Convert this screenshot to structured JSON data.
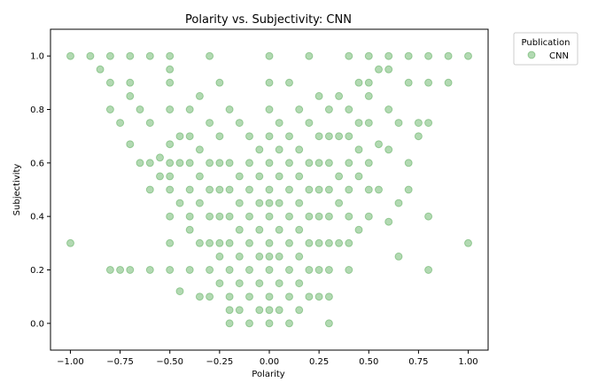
{
  "chart_data": {
    "type": "scatter",
    "title": "Polarity vs. Subjectivity: CNN",
    "xlabel": "Polarity",
    "ylabel": "Subjectivity",
    "xlim": [
      -1.1,
      1.1
    ],
    "ylim": [
      -0.1,
      1.1
    ],
    "x_ticks": [
      -1.0,
      -0.75,
      -0.5,
      -0.25,
      0.0,
      0.25,
      0.5,
      0.75,
      1.0
    ],
    "x_tick_labels": [
      "−1.00",
      "−0.75",
      "−0.50",
      "−0.25",
      "0.00",
      "0.25",
      "0.50",
      "0.75",
      "1.00"
    ],
    "y_ticks": [
      0.0,
      0.2,
      0.4,
      0.6,
      0.8,
      1.0
    ],
    "y_tick_labels": [
      "0.0",
      "0.2",
      "0.4",
      "0.6",
      "0.8",
      "1.0"
    ],
    "grid": false,
    "legend": {
      "title": "Publication",
      "placement": "outside-top-right",
      "entries": [
        "CNN"
      ]
    },
    "series": [
      {
        "name": "CNN",
        "color": "#008000",
        "alpha": 0.3,
        "points": [
          [
            -1.0,
            1.0
          ],
          [
            -1.0,
            0.3
          ],
          [
            -0.9,
            1.0
          ],
          [
            -0.85,
            0.95
          ],
          [
            -0.8,
            1.0
          ],
          [
            -0.8,
            0.9
          ],
          [
            -0.8,
            0.8
          ],
          [
            -0.8,
            0.2
          ],
          [
            -0.75,
            0.75
          ],
          [
            -0.75,
            0.2
          ],
          [
            -0.7,
            1.0
          ],
          [
            -0.7,
            0.9
          ],
          [
            -0.7,
            0.85
          ],
          [
            -0.7,
            0.67
          ],
          [
            -0.7,
            0.2
          ],
          [
            -0.65,
            0.8
          ],
          [
            -0.65,
            0.6
          ],
          [
            -0.6,
            1.0
          ],
          [
            -0.6,
            0.75
          ],
          [
            -0.6,
            0.6
          ],
          [
            -0.6,
            0.5
          ],
          [
            -0.6,
            0.2
          ],
          [
            -0.55,
            0.62
          ],
          [
            -0.55,
            0.55
          ],
          [
            -0.5,
            1.0
          ],
          [
            -0.5,
            0.95
          ],
          [
            -0.5,
            0.9
          ],
          [
            -0.5,
            0.8
          ],
          [
            -0.5,
            0.67
          ],
          [
            -0.5,
            0.6
          ],
          [
            -0.5,
            0.55
          ],
          [
            -0.5,
            0.5
          ],
          [
            -0.5,
            0.4
          ],
          [
            -0.5,
            0.3
          ],
          [
            -0.5,
            0.2
          ],
          [
            -0.45,
            0.7
          ],
          [
            -0.45,
            0.6
          ],
          [
            -0.45,
            0.45
          ],
          [
            -0.45,
            0.12
          ],
          [
            -0.4,
            0.8
          ],
          [
            -0.4,
            0.7
          ],
          [
            -0.4,
            0.6
          ],
          [
            -0.4,
            0.5
          ],
          [
            -0.4,
            0.4
          ],
          [
            -0.4,
            0.35
          ],
          [
            -0.4,
            0.2
          ],
          [
            -0.35,
            0.85
          ],
          [
            -0.35,
            0.65
          ],
          [
            -0.35,
            0.55
          ],
          [
            -0.35,
            0.45
          ],
          [
            -0.35,
            0.3
          ],
          [
            -0.35,
            0.1
          ],
          [
            -0.3,
            1.0
          ],
          [
            -0.3,
            0.75
          ],
          [
            -0.3,
            0.6
          ],
          [
            -0.3,
            0.5
          ],
          [
            -0.3,
            0.4
          ],
          [
            -0.3,
            0.3
          ],
          [
            -0.3,
            0.2
          ],
          [
            -0.3,
            0.1
          ],
          [
            -0.25,
            0.9
          ],
          [
            -0.25,
            0.7
          ],
          [
            -0.25,
            0.6
          ],
          [
            -0.25,
            0.5
          ],
          [
            -0.25,
            0.4
          ],
          [
            -0.25,
            0.3
          ],
          [
            -0.25,
            0.25
          ],
          [
            -0.25,
            0.15
          ],
          [
            -0.2,
            0.8
          ],
          [
            -0.2,
            0.6
          ],
          [
            -0.2,
            0.5
          ],
          [
            -0.2,
            0.4
          ],
          [
            -0.2,
            0.3
          ],
          [
            -0.2,
            0.2
          ],
          [
            -0.2,
            0.1
          ],
          [
            -0.2,
            0.05
          ],
          [
            -0.2,
            0.0
          ],
          [
            -0.15,
            0.75
          ],
          [
            -0.15,
            0.55
          ],
          [
            -0.15,
            0.45
          ],
          [
            -0.15,
            0.35
          ],
          [
            -0.15,
            0.25
          ],
          [
            -0.15,
            0.15
          ],
          [
            -0.15,
            0.05
          ],
          [
            -0.1,
            0.7
          ],
          [
            -0.1,
            0.6
          ],
          [
            -0.1,
            0.5
          ],
          [
            -0.1,
            0.4
          ],
          [
            -0.1,
            0.3
          ],
          [
            -0.1,
            0.2
          ],
          [
            -0.1,
            0.1
          ],
          [
            -0.1,
            0.0
          ],
          [
            -0.05,
            0.65
          ],
          [
            -0.05,
            0.55
          ],
          [
            -0.05,
            0.45
          ],
          [
            -0.05,
            0.35
          ],
          [
            -0.05,
            0.25
          ],
          [
            -0.05,
            0.15
          ],
          [
            -0.05,
            0.05
          ],
          [
            0.0,
            1.0
          ],
          [
            0.0,
            0.9
          ],
          [
            0.0,
            0.8
          ],
          [
            0.0,
            0.7
          ],
          [
            0.0,
            0.6
          ],
          [
            0.0,
            0.5
          ],
          [
            0.0,
            0.45
          ],
          [
            0.0,
            0.4
          ],
          [
            0.0,
            0.3
          ],
          [
            0.0,
            0.25
          ],
          [
            0.0,
            0.2
          ],
          [
            0.0,
            0.1
          ],
          [
            0.0,
            0.05
          ],
          [
            0.0,
            0.0
          ],
          [
            0.05,
            0.75
          ],
          [
            0.05,
            0.65
          ],
          [
            0.05,
            0.55
          ],
          [
            0.05,
            0.45
          ],
          [
            0.05,
            0.35
          ],
          [
            0.05,
            0.25
          ],
          [
            0.05,
            0.15
          ],
          [
            0.05,
            0.05
          ],
          [
            0.1,
            0.9
          ],
          [
            0.1,
            0.7
          ],
          [
            0.1,
            0.6
          ],
          [
            0.1,
            0.5
          ],
          [
            0.1,
            0.4
          ],
          [
            0.1,
            0.3
          ],
          [
            0.1,
            0.2
          ],
          [
            0.1,
            0.1
          ],
          [
            0.1,
            0.0
          ],
          [
            0.15,
            0.8
          ],
          [
            0.15,
            0.65
          ],
          [
            0.15,
            0.55
          ],
          [
            0.15,
            0.45
          ],
          [
            0.15,
            0.35
          ],
          [
            0.15,
            0.25
          ],
          [
            0.15,
            0.15
          ],
          [
            0.15,
            0.05
          ],
          [
            0.2,
            1.0
          ],
          [
            0.2,
            0.75
          ],
          [
            0.2,
            0.6
          ],
          [
            0.2,
            0.5
          ],
          [
            0.2,
            0.4
          ],
          [
            0.2,
            0.3
          ],
          [
            0.2,
            0.2
          ],
          [
            0.2,
            0.1
          ],
          [
            0.25,
            0.85
          ],
          [
            0.25,
            0.7
          ],
          [
            0.25,
            0.6
          ],
          [
            0.25,
            0.5
          ],
          [
            0.25,
            0.4
          ],
          [
            0.25,
            0.3
          ],
          [
            0.25,
            0.2
          ],
          [
            0.25,
            0.1
          ],
          [
            0.3,
            0.8
          ],
          [
            0.3,
            0.7
          ],
          [
            0.3,
            0.6
          ],
          [
            0.3,
            0.5
          ],
          [
            0.3,
            0.4
          ],
          [
            0.3,
            0.3
          ],
          [
            0.3,
            0.2
          ],
          [
            0.3,
            0.1
          ],
          [
            0.3,
            0.0
          ],
          [
            0.35,
            0.85
          ],
          [
            0.35,
            0.7
          ],
          [
            0.35,
            0.55
          ],
          [
            0.35,
            0.45
          ],
          [
            0.35,
            0.3
          ],
          [
            0.4,
            1.0
          ],
          [
            0.4,
            0.8
          ],
          [
            0.4,
            0.7
          ],
          [
            0.4,
            0.6
          ],
          [
            0.4,
            0.5
          ],
          [
            0.4,
            0.4
          ],
          [
            0.4,
            0.3
          ],
          [
            0.4,
            0.2
          ],
          [
            0.45,
            0.9
          ],
          [
            0.45,
            0.75
          ],
          [
            0.45,
            0.65
          ],
          [
            0.45,
            0.55
          ],
          [
            0.45,
            0.35
          ],
          [
            0.5,
            1.0
          ],
          [
            0.5,
            0.9
          ],
          [
            0.5,
            0.85
          ],
          [
            0.5,
            0.75
          ],
          [
            0.5,
            0.6
          ],
          [
            0.5,
            0.5
          ],
          [
            0.5,
            0.4
          ],
          [
            0.55,
            0.95
          ],
          [
            0.55,
            0.67
          ],
          [
            0.55,
            0.5
          ],
          [
            0.6,
            1.0
          ],
          [
            0.6,
            0.95
          ],
          [
            0.6,
            0.8
          ],
          [
            0.6,
            0.65
          ],
          [
            0.6,
            0.38
          ],
          [
            0.65,
            0.75
          ],
          [
            0.65,
            0.45
          ],
          [
            0.65,
            0.25
          ],
          [
            0.7,
            1.0
          ],
          [
            0.7,
            0.9
          ],
          [
            0.7,
            0.6
          ],
          [
            0.7,
            0.5
          ],
          [
            0.75,
            0.75
          ],
          [
            0.75,
            0.7
          ],
          [
            0.8,
            1.0
          ],
          [
            0.8,
            0.9
          ],
          [
            0.8,
            0.75
          ],
          [
            0.8,
            0.4
          ],
          [
            0.8,
            0.2
          ],
          [
            0.9,
            1.0
          ],
          [
            0.9,
            0.9
          ],
          [
            1.0,
            1.0
          ],
          [
            1.0,
            0.3
          ]
        ]
      }
    ]
  }
}
